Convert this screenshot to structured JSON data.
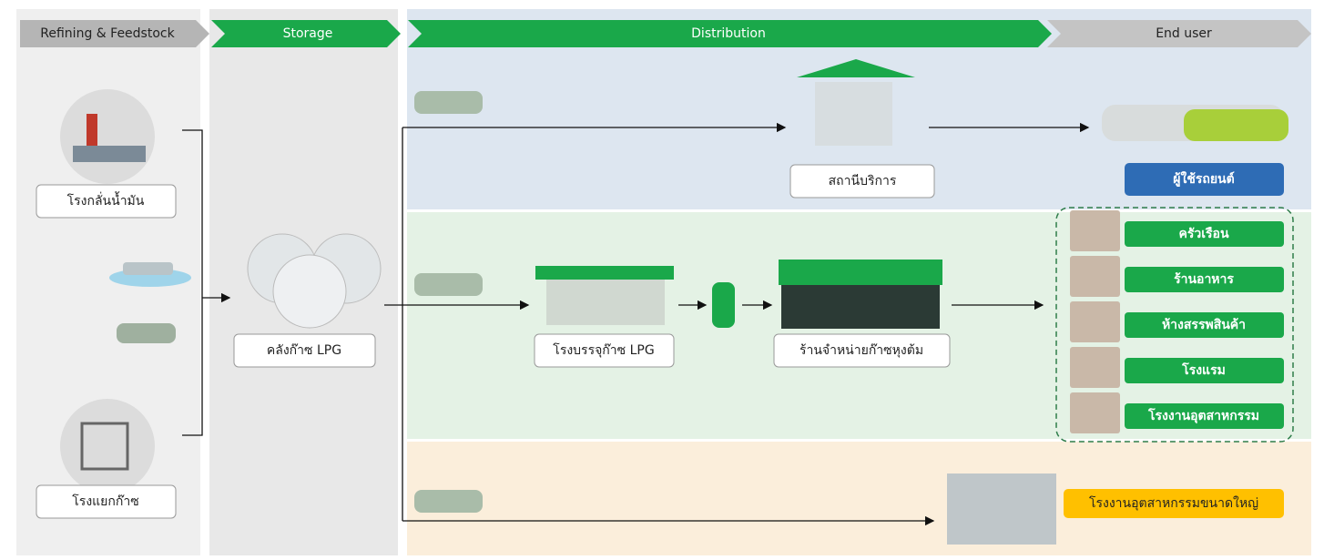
{
  "stages": [
    "Refining & Feedstock",
    "Storage",
    "Distribution",
    "End user"
  ],
  "nodes": {
    "refinery": "โรงกลั่นน้ำมัน",
    "gas_separation": "โรงแยกก๊าซ",
    "terminal": "คลังก๊าซ LPG",
    "station": "สถานีบริการ",
    "filling_plant": "โรงบรรจุก๊าซ LPG",
    "retail_shop": "ร้านจำหน่ายก๊าซหุงต้ม",
    "car_users": "ผู้ใช้รถยนต์",
    "end_users": [
      "ครัวเรือน",
      "ร้านอาหาร",
      "ห้างสรรพสินค้า",
      "โรงแรม",
      "โรงงานอุตสาหกรรม"
    ],
    "large_industry": "โรงงานอุตสาหกรรมขนาดใหญ่"
  }
}
